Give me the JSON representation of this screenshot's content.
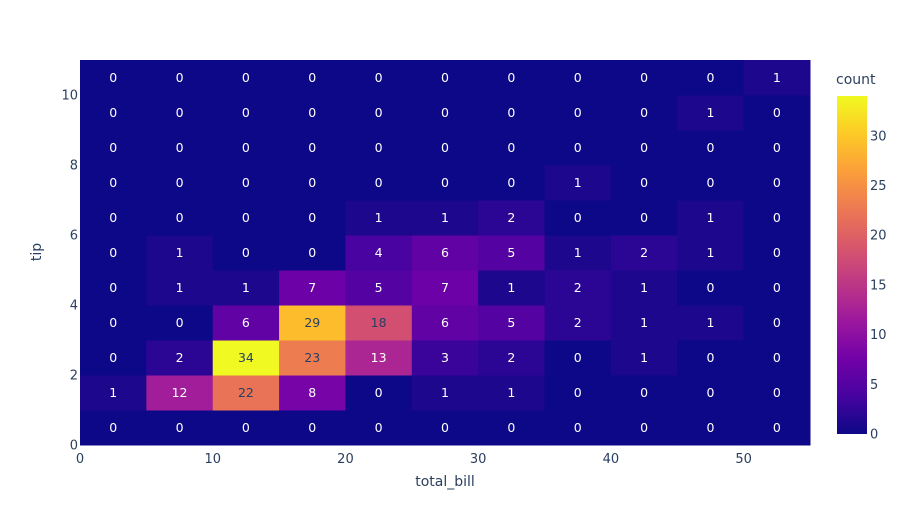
{
  "chart_data": {
    "type": "heatmap",
    "title": "",
    "xlabel": "total_bill",
    "ylabel": "tip",
    "x_bins": [
      0,
      5,
      10,
      15,
      20,
      25,
      30,
      35,
      40,
      45,
      50,
      55
    ],
    "y_bins": [
      0,
      1,
      2,
      3,
      4,
      5,
      6,
      7,
      8,
      9,
      10,
      11
    ],
    "xlim": [
      0,
      55
    ],
    "ylim": [
      0,
      11
    ],
    "x_ticks": [
      "0",
      "10",
      "20",
      "30",
      "40",
      "50"
    ],
    "x_tick_values": [
      0,
      10,
      20,
      30,
      40,
      50
    ],
    "y_ticks": [
      "0",
      "2",
      "4",
      "6",
      "8",
      "10"
    ],
    "y_tick_values": [
      0,
      2,
      4,
      6,
      8,
      10
    ],
    "z": [
      [
        0,
        0,
        0,
        0,
        0,
        0,
        0,
        0,
        0,
        0,
        0
      ],
      [
        1,
        12,
        22,
        8,
        0,
        1,
        1,
        0,
        0,
        0,
        0
      ],
      [
        0,
        2,
        34,
        23,
        13,
        3,
        2,
        0,
        1,
        0,
        0
      ],
      [
        0,
        0,
        6,
        29,
        18,
        6,
        5,
        2,
        1,
        1,
        0
      ],
      [
        0,
        1,
        1,
        7,
        5,
        7,
        1,
        2,
        1,
        0,
        0
      ],
      [
        0,
        1,
        0,
        0,
        4,
        6,
        5,
        1,
        2,
        1,
        0
      ],
      [
        0,
        0,
        0,
        0,
        1,
        1,
        2,
        0,
        0,
        1,
        0
      ],
      [
        0,
        0,
        0,
        0,
        0,
        0,
        0,
        1,
        0,
        0,
        0
      ],
      [
        0,
        0,
        0,
        0,
        0,
        0,
        0,
        0,
        0,
        0,
        0
      ],
      [
        0,
        0,
        0,
        0,
        0,
        0,
        0,
        0,
        0,
        1,
        0
      ],
      [
        0,
        0,
        0,
        0,
        0,
        0,
        0,
        0,
        0,
        0,
        1
      ]
    ],
    "colorbar": {
      "title": "count",
      "range": [
        0,
        34
      ],
      "ticks": [
        "0",
        "5",
        "10",
        "15",
        "20",
        "25",
        "30"
      ],
      "tick_values": [
        0,
        5,
        10,
        15,
        20,
        25,
        30
      ]
    },
    "colorscale": [
      "#0d0887",
      "#46039f",
      "#7201a8",
      "#9c179e",
      "#bd3786",
      "#d8576b",
      "#ed7953",
      "#fb9f3a",
      "#fdca26",
      "#f0f921"
    ],
    "label_color_dark": "#2a3f5f",
    "label_color_light": "#ffffff"
  }
}
